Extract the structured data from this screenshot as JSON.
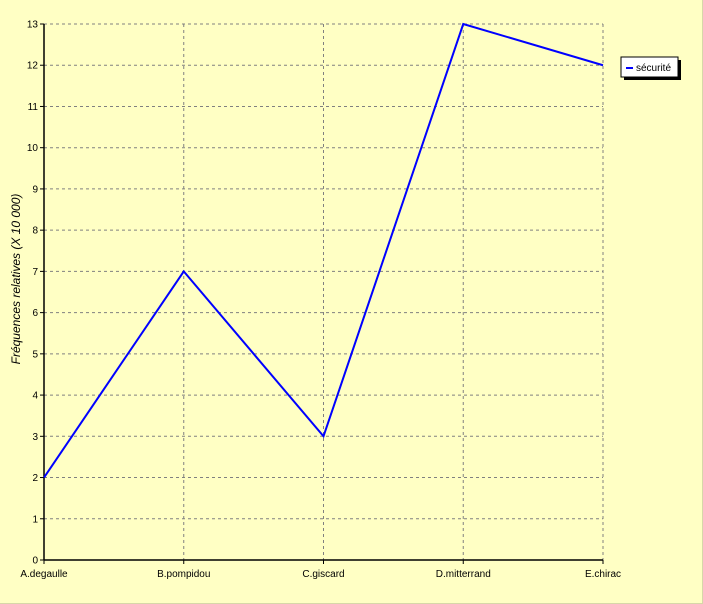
{
  "colors": {
    "background": "#ffffc4",
    "plot_background": "#ffffc4",
    "grid": "#808080",
    "axis": "#000000",
    "series": "#0000ff",
    "legend_background": "#ffffff",
    "legend_shadow": "#000000"
  },
  "chart_data": {
    "type": "line",
    "title": "",
    "xlabel": "",
    "ylabel": "Fréquences relatives (X 10 000)",
    "categories": [
      "A.degaulle",
      "B.pompidou",
      "C.giscard",
      "D.mitterrand",
      "E.chirac"
    ],
    "series": [
      {
        "name": "sécurité",
        "values": [
          2,
          7,
          3,
          13,
          12
        ],
        "color": "#0000ff"
      }
    ],
    "ylim": [
      0,
      13
    ],
    "yticks": [
      0,
      1,
      2,
      3,
      4,
      5,
      6,
      7,
      8,
      9,
      10,
      11,
      12,
      13
    ],
    "grid": true,
    "grid_style": "dashed",
    "legend_position": "top-right"
  }
}
